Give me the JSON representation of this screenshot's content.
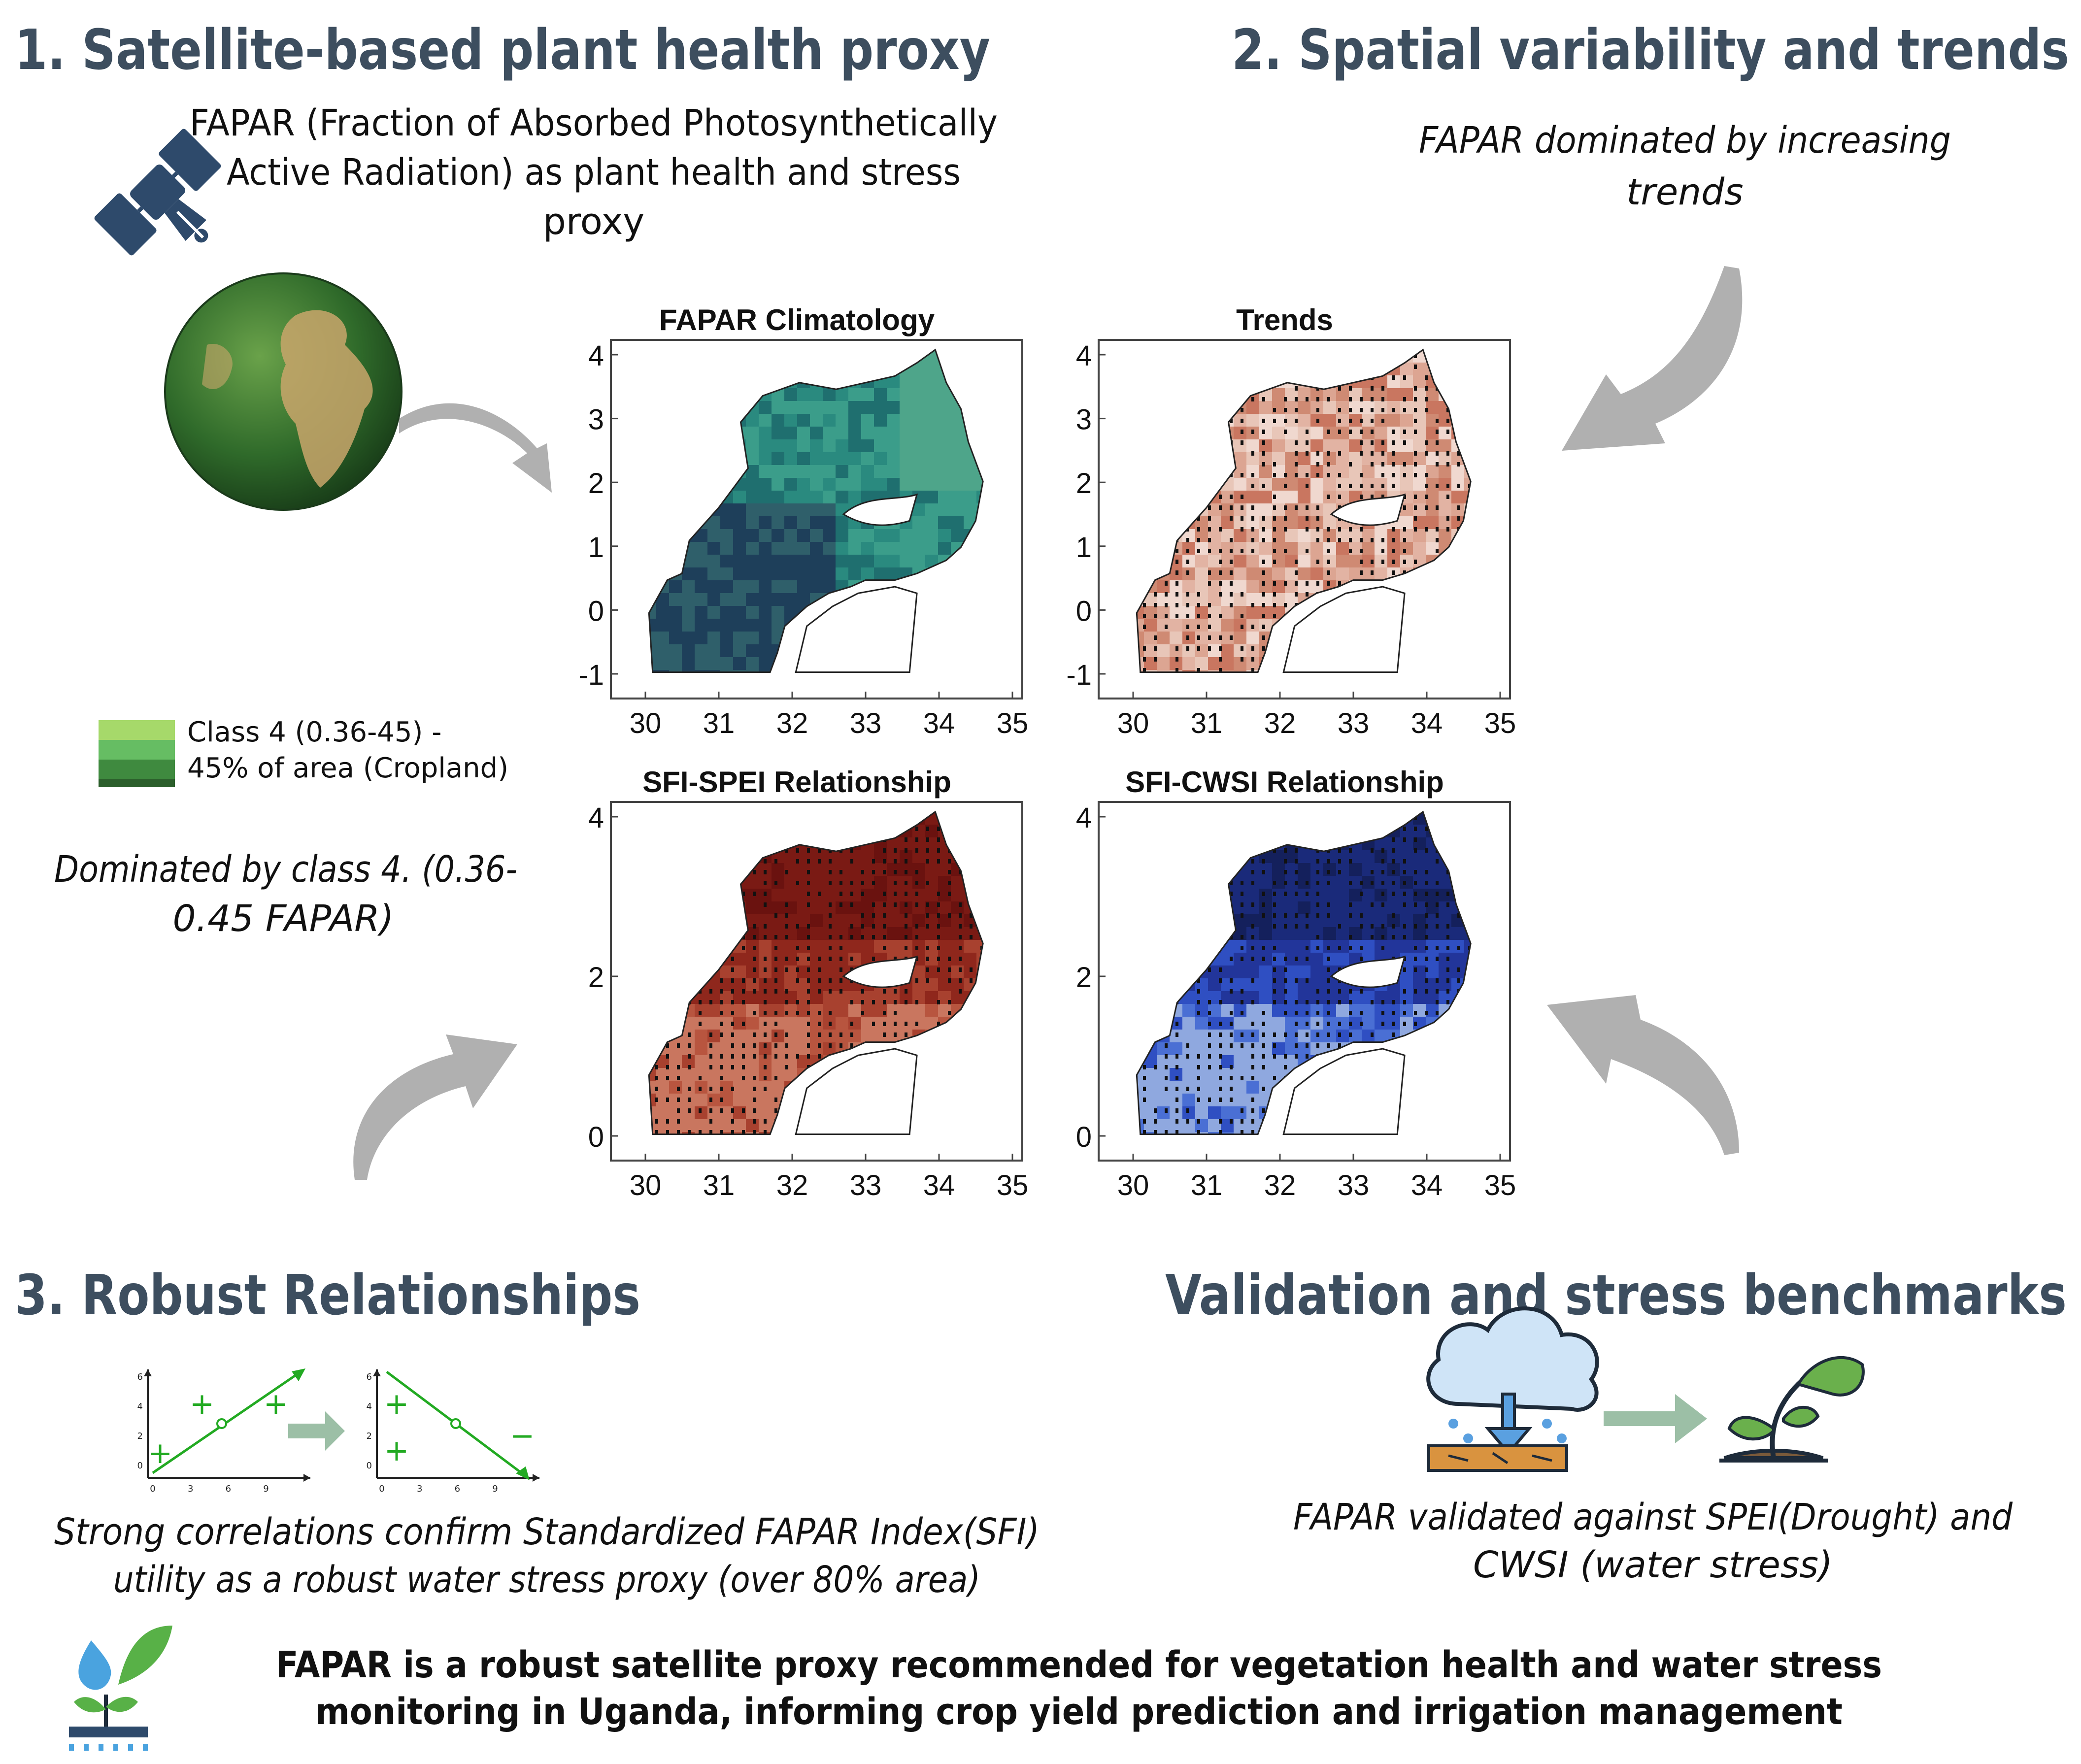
{
  "section1": {
    "title": "1. Satellite-based plant health proxy",
    "desc_line1": "FAPAR (Fraction of Absorbed Photosynthetically",
    "desc_line2": "Active Radiation) as plant health and stress",
    "desc_line3": "proxy",
    "legend_line1": "Class 4 (0.36-45) -",
    "legend_line2": "45% of area (Cropland)",
    "legend_colors": [
      "#a6d96a",
      "#66bd63",
      "#3f8a3f",
      "#2b5e2b"
    ],
    "note_line1": "Dominated by class 4. (0.36-",
    "note_line2": "0.45 FAPAR)"
  },
  "section2": {
    "title": "2. Spatial variability and trends",
    "note_line1": "FAPAR dominated by increasing",
    "note_line2": "trends"
  },
  "section3": {
    "title": "3. Robust Relationships",
    "note_line1": "Strong correlations confirm  Standardized FAPAR Index(SFI)",
    "note_line2": "utility as a robust water stress proxy (over 80% area)"
  },
  "section4": {
    "title": "Validation and stress benchmarks",
    "note_line1": "FAPAR validated against SPEI(Drought) and",
    "note_line2": "CWSI (water stress)"
  },
  "conclusion": {
    "line1": "FAPAR is a robust satellite proxy recommended for vegetation health and water stress",
    "line2": "monitoring in Uganda, informing crop yield prediction and irrigation management"
  },
  "maps": [
    {
      "title": "FAPAR Climatology",
      "y_ticks": [
        "4",
        "3",
        "2",
        "1",
        "0",
        "-1"
      ],
      "x_ticks": [
        "30",
        "31",
        "32",
        "33",
        "34",
        "35"
      ],
      "colormap": "teal",
      "stippled": false
    },
    {
      "title": "Trends",
      "y_ticks": [
        "4",
        "3",
        "2",
        "1",
        "0",
        "-1"
      ],
      "x_ticks": [
        "30",
        "31",
        "32",
        "33",
        "34",
        "35"
      ],
      "colormap": "red-light",
      "stippled": true
    },
    {
      "title": "SFI-SPEI Relationship",
      "y_ticks": [
        "4",
        "2",
        "0"
      ],
      "x_ticks": [
        "30",
        "31",
        "32",
        "33",
        "34",
        "35"
      ],
      "colormap": "red-dark",
      "stippled": true
    },
    {
      "title": "SFI-CWSI Relationship",
      "y_ticks": [
        "4",
        "2",
        "0"
      ],
      "x_ticks": [
        "30",
        "31",
        "32",
        "33",
        "34",
        "35"
      ],
      "colormap": "blue",
      "stippled": true
    }
  ],
  "mini_plots": {
    "y_ticks": [
      "6",
      "4",
      "2",
      "0"
    ],
    "x_ticks": [
      "0",
      "3",
      "6",
      "9"
    ],
    "positive_marks": [
      "+",
      "+",
      "+"
    ],
    "negative_mark": "−",
    "positive_label_left": "+",
    "colors": {
      "line": "#22aa22",
      "axis": "#222222"
    }
  },
  "colors": {
    "heading": "#3d4e5f",
    "arrow": "#b0b0b0",
    "icon_navy": "#2e4a6b",
    "arrow_green": "#9cbfa6"
  },
  "icons": [
    "satellite-icon",
    "globe-icon",
    "cloud-rain-icon",
    "sprout-icon",
    "plant-water-icon"
  ]
}
